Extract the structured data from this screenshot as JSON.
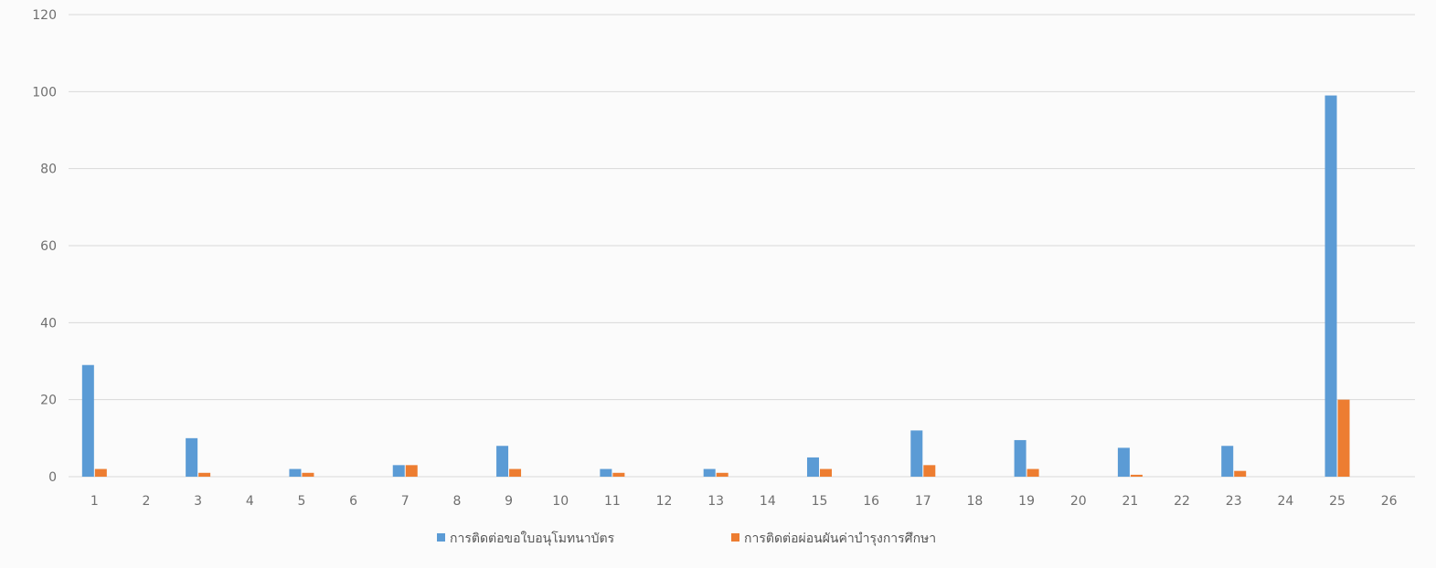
{
  "chart_data": {
    "type": "bar",
    "title": "",
    "xlabel": "",
    "ylabel": "",
    "ylim": [
      0,
      120
    ],
    "yticks": [
      0,
      20,
      40,
      60,
      80,
      100,
      120
    ],
    "grid": true,
    "legend_position": "bottom",
    "categories": [
      "1",
      "2",
      "3",
      "4",
      "5",
      "6",
      "7",
      "8",
      "9",
      "10",
      "11",
      "12",
      "13",
      "14",
      "15",
      "16",
      "17",
      "18",
      "19",
      "20",
      "21",
      "22",
      "23",
      "24",
      "25",
      "26"
    ],
    "series": [
      {
        "name": "การติดต่อขอใบอนุโมทนาบัตร",
        "color": "#5b9bd5",
        "values": [
          29,
          0,
          10,
          0,
          2,
          0,
          3,
          0,
          8,
          0,
          2,
          0,
          2,
          0,
          5,
          0,
          12,
          0,
          9.5,
          0,
          7.5,
          0,
          8,
          0,
          99,
          0
        ]
      },
      {
        "name": "การติดต่อผ่อนผันค่าบำรุงการศึกษา",
        "color": "#ed7d31",
        "values": [
          2,
          0,
          1,
          0,
          1,
          0,
          3,
          0,
          2,
          0,
          1,
          0,
          1,
          0,
          2,
          0,
          3,
          0,
          2,
          0,
          0.5,
          0,
          1.5,
          0,
          20,
          0
        ]
      }
    ]
  },
  "colors": {
    "gridline": "#d9d9d9",
    "tick_text": "#6f6f6f"
  }
}
